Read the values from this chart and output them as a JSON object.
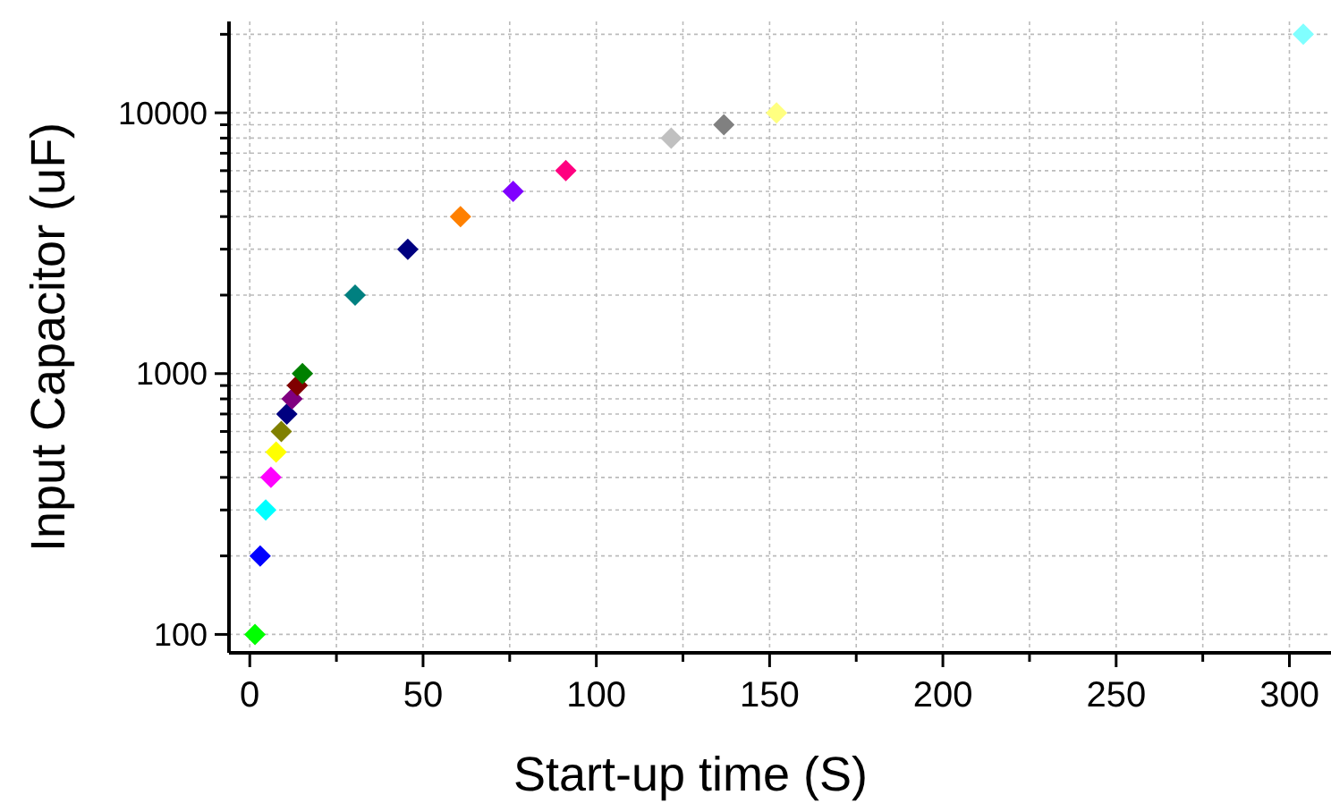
{
  "chart_data": {
    "type": "scatter",
    "xlabel": "Start-up time (S)",
    "ylabel": "Input Capacitor (uF)",
    "x": [
      1.5,
      3,
      4.6,
      6.1,
      7.6,
      9.1,
      10.7,
      12.2,
      13.7,
      15.2,
      30.4,
      45.6,
      60.8,
      76,
      91.2,
      121.6,
      136.8,
      152,
      304
    ],
    "values": [
      100,
      200,
      300,
      400,
      500,
      600,
      700,
      800,
      900,
      1000,
      2000,
      3000,
      4000,
      5000,
      6000,
      8000,
      9000,
      10000,
      20000
    ],
    "colors": [
      "#00ff00",
      "#0000ff",
      "#00ffff",
      "#ff00ff",
      "#ffff00",
      "#808000",
      "#000080",
      "#800080",
      "#800000",
      "#008000",
      "#008080",
      "#000080",
      "#ff8000",
      "#8000ff",
      "#ff0080",
      "#c0c0c0",
      "#808080",
      "#ffff80",
      "#80ffff"
    ],
    "marker": "diamond",
    "log": "y",
    "grid": true,
    "xlim": [
      -6,
      312
    ],
    "xticks": [
      0,
      {
        "value": 25,
        "label": null
      },
      50,
      {
        "value": 75,
        "label": null
      },
      100,
      {
        "value": 125,
        "label": null
      },
      150,
      {
        "value": 175,
        "label": null
      },
      200,
      {
        "value": 225,
        "label": null
      },
      250,
      {
        "value": 275,
        "label": null
      },
      300
    ],
    "ylim": [
      85,
      22400
    ],
    "yticks": [
      100,
      {
        "value": 200,
        "label": null
      },
      {
        "value": 300,
        "label": null
      },
      {
        "value": 400,
        "label": null
      },
      {
        "value": 500,
        "label": null
      },
      {
        "value": 600,
        "label": null
      },
      {
        "value": 700,
        "label": null
      },
      {
        "value": 800,
        "label": null
      },
      {
        "value": 900,
        "label": null
      },
      1000,
      {
        "value": 2000,
        "label": null
      },
      {
        "value": 3000,
        "label": null
      },
      {
        "value": 4000,
        "label": null
      },
      {
        "value": 5000,
        "label": null
      },
      {
        "value": 6000,
        "label": null
      },
      {
        "value": 7000,
        "label": null
      },
      {
        "value": 8000,
        "label": null
      },
      {
        "value": 9000,
        "label": null
      },
      10000,
      {
        "value": 20000,
        "label": null
      }
    ]
  }
}
